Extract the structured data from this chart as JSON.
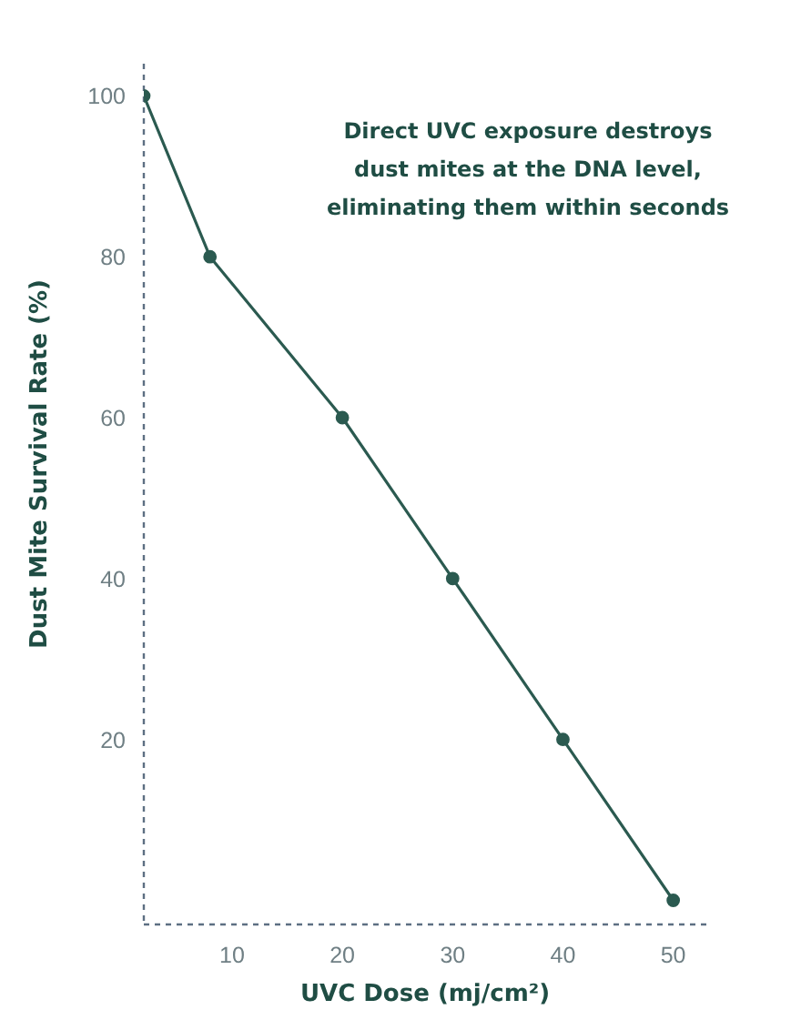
{
  "chart_data": {
    "type": "line",
    "xlabel": "UVC Dose (mj/cm²)",
    "ylabel": "Dust Mite Survival Rate (%)",
    "annotations": [
      "Direct UVC exposure destroys dust mites at the DNA level, eliminating them within seconds"
    ],
    "x": [
      2,
      8,
      20,
      30,
      40,
      50
    ],
    "values": [
      100,
      80,
      60,
      40,
      20,
      0
    ],
    "color": "#2b5a50",
    "marker": "circle",
    "line_style": "solid",
    "xlim": [
      2,
      53
    ],
    "xticks": [
      10,
      20,
      30,
      40,
      50
    ],
    "ylim": [
      -3,
      104
    ],
    "yticks": [
      20,
      40,
      60,
      80,
      100
    ]
  }
}
